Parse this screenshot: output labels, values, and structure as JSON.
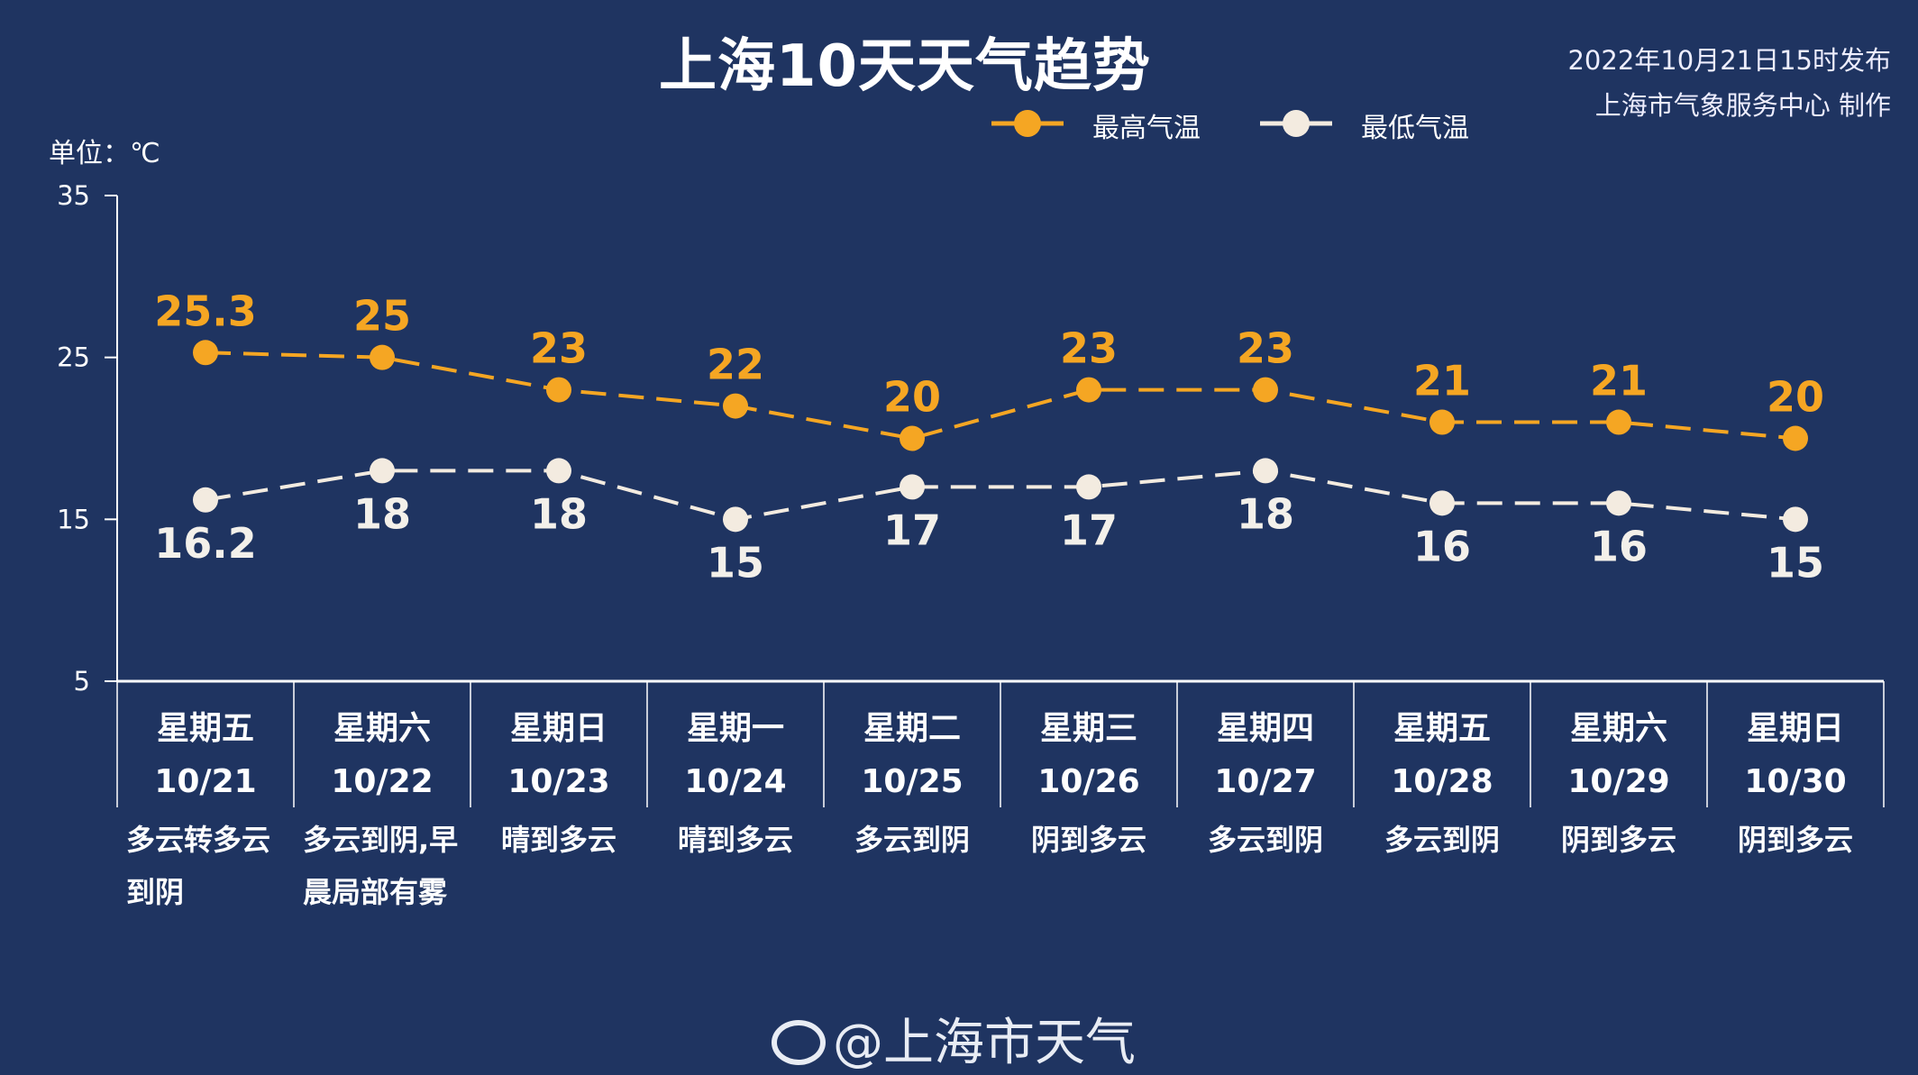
{
  "title": "上海10天天气趋势",
  "publish": {
    "time": "2022年10月21日15时发布",
    "producer": "上海市气象服务中心 制作"
  },
  "unit_label": "单位：℃",
  "footer": {
    "handle": "@上海市天气",
    "icon": "weibo-logo-icon"
  },
  "colors": {
    "background": "#1f3461",
    "high": "#f5a623",
    "low": "#f3ebe0"
  },
  "chart_data": {
    "type": "line",
    "title": "上海10天天气趋势",
    "ylabel": "单位：℃",
    "ylim": [
      5,
      35
    ],
    "yticks": [
      35,
      25,
      15,
      5
    ],
    "legend_position": "top-right",
    "grid": false,
    "categories": [
      "10/21",
      "10/22",
      "10/23",
      "10/24",
      "10/25",
      "10/26",
      "10/27",
      "10/28",
      "10/29",
      "10/30"
    ],
    "weekdays": [
      "星期五",
      "星期六",
      "星期日",
      "星期一",
      "星期二",
      "星期三",
      "星期四",
      "星期五",
      "星期六",
      "星期日"
    ],
    "descriptions": [
      [
        "多云转多云",
        "到阴"
      ],
      [
        "多云到阴,早",
        "晨局部有雾"
      ],
      [
        "晴到多云"
      ],
      [
        "晴到多云"
      ],
      [
        "多云到阴"
      ],
      [
        "阴到多云"
      ],
      [
        "多云到阴"
      ],
      [
        "多云到阴"
      ],
      [
        "阴到多云"
      ],
      [
        "阴到多云"
      ]
    ],
    "series": [
      {
        "name": "最高气温",
        "color": "#f5a623",
        "values": [
          25.3,
          25,
          23,
          22,
          20,
          23,
          23,
          21,
          21,
          20
        ],
        "labels": [
          "25.3",
          "25",
          "23",
          "22",
          "20",
          "23",
          "23",
          "21",
          "21",
          "20"
        ]
      },
      {
        "name": "最低气温",
        "color": "#f3ebe0",
        "values": [
          16.2,
          18,
          18,
          15,
          17,
          17,
          18,
          16,
          16,
          15
        ],
        "labels": [
          "16.2",
          "18",
          "18",
          "15",
          "17",
          "17",
          "18",
          "16",
          "16",
          "15"
        ]
      }
    ]
  }
}
